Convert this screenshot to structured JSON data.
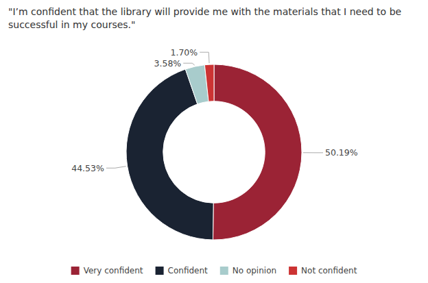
{
  "chart_data": {
    "type": "donut",
    "title": "\"I’m confident that the library will provide me with the materials that I need to be successful in my courses.\"",
    "categories": [
      "Very confident",
      "Confident",
      "No opinion",
      "Not confident"
    ],
    "values": [
      50.19,
      44.53,
      3.58,
      1.7
    ],
    "value_labels": [
      "50.19%",
      "44.53%",
      "3.58%",
      "1.70%"
    ],
    "colors": [
      "#9b2335",
      "#1a2332",
      "#a8cccc",
      "#cc3333"
    ],
    "data_labels": true,
    "legend": "bottom"
  }
}
